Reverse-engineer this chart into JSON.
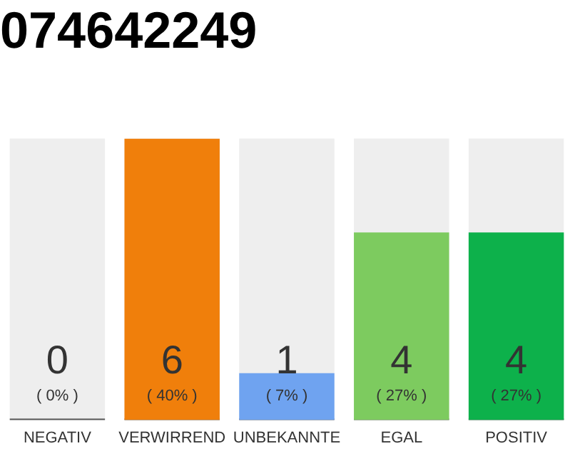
{
  "chart_data": {
    "type": "bar",
    "title": "074642249",
    "categories": [
      "NEGATIV",
      "VERWIRREND",
      "UNBEKANNTE",
      "EGAL",
      "POSITIV"
    ],
    "values": [
      0,
      6,
      1,
      4,
      4
    ],
    "value_labels": [
      "0",
      "6",
      "1",
      "4",
      "4"
    ],
    "colors": [
      "#555555",
      "#f07f0b",
      "#6fa3f0",
      "#7dcb5f",
      "#0db14b"
    ],
    "annotations": [
      "( 0% )",
      "( 40% )",
      "( 7% )",
      "( 27% )",
      "( 27% )"
    ],
    "grid": false,
    "legend": false
  }
}
